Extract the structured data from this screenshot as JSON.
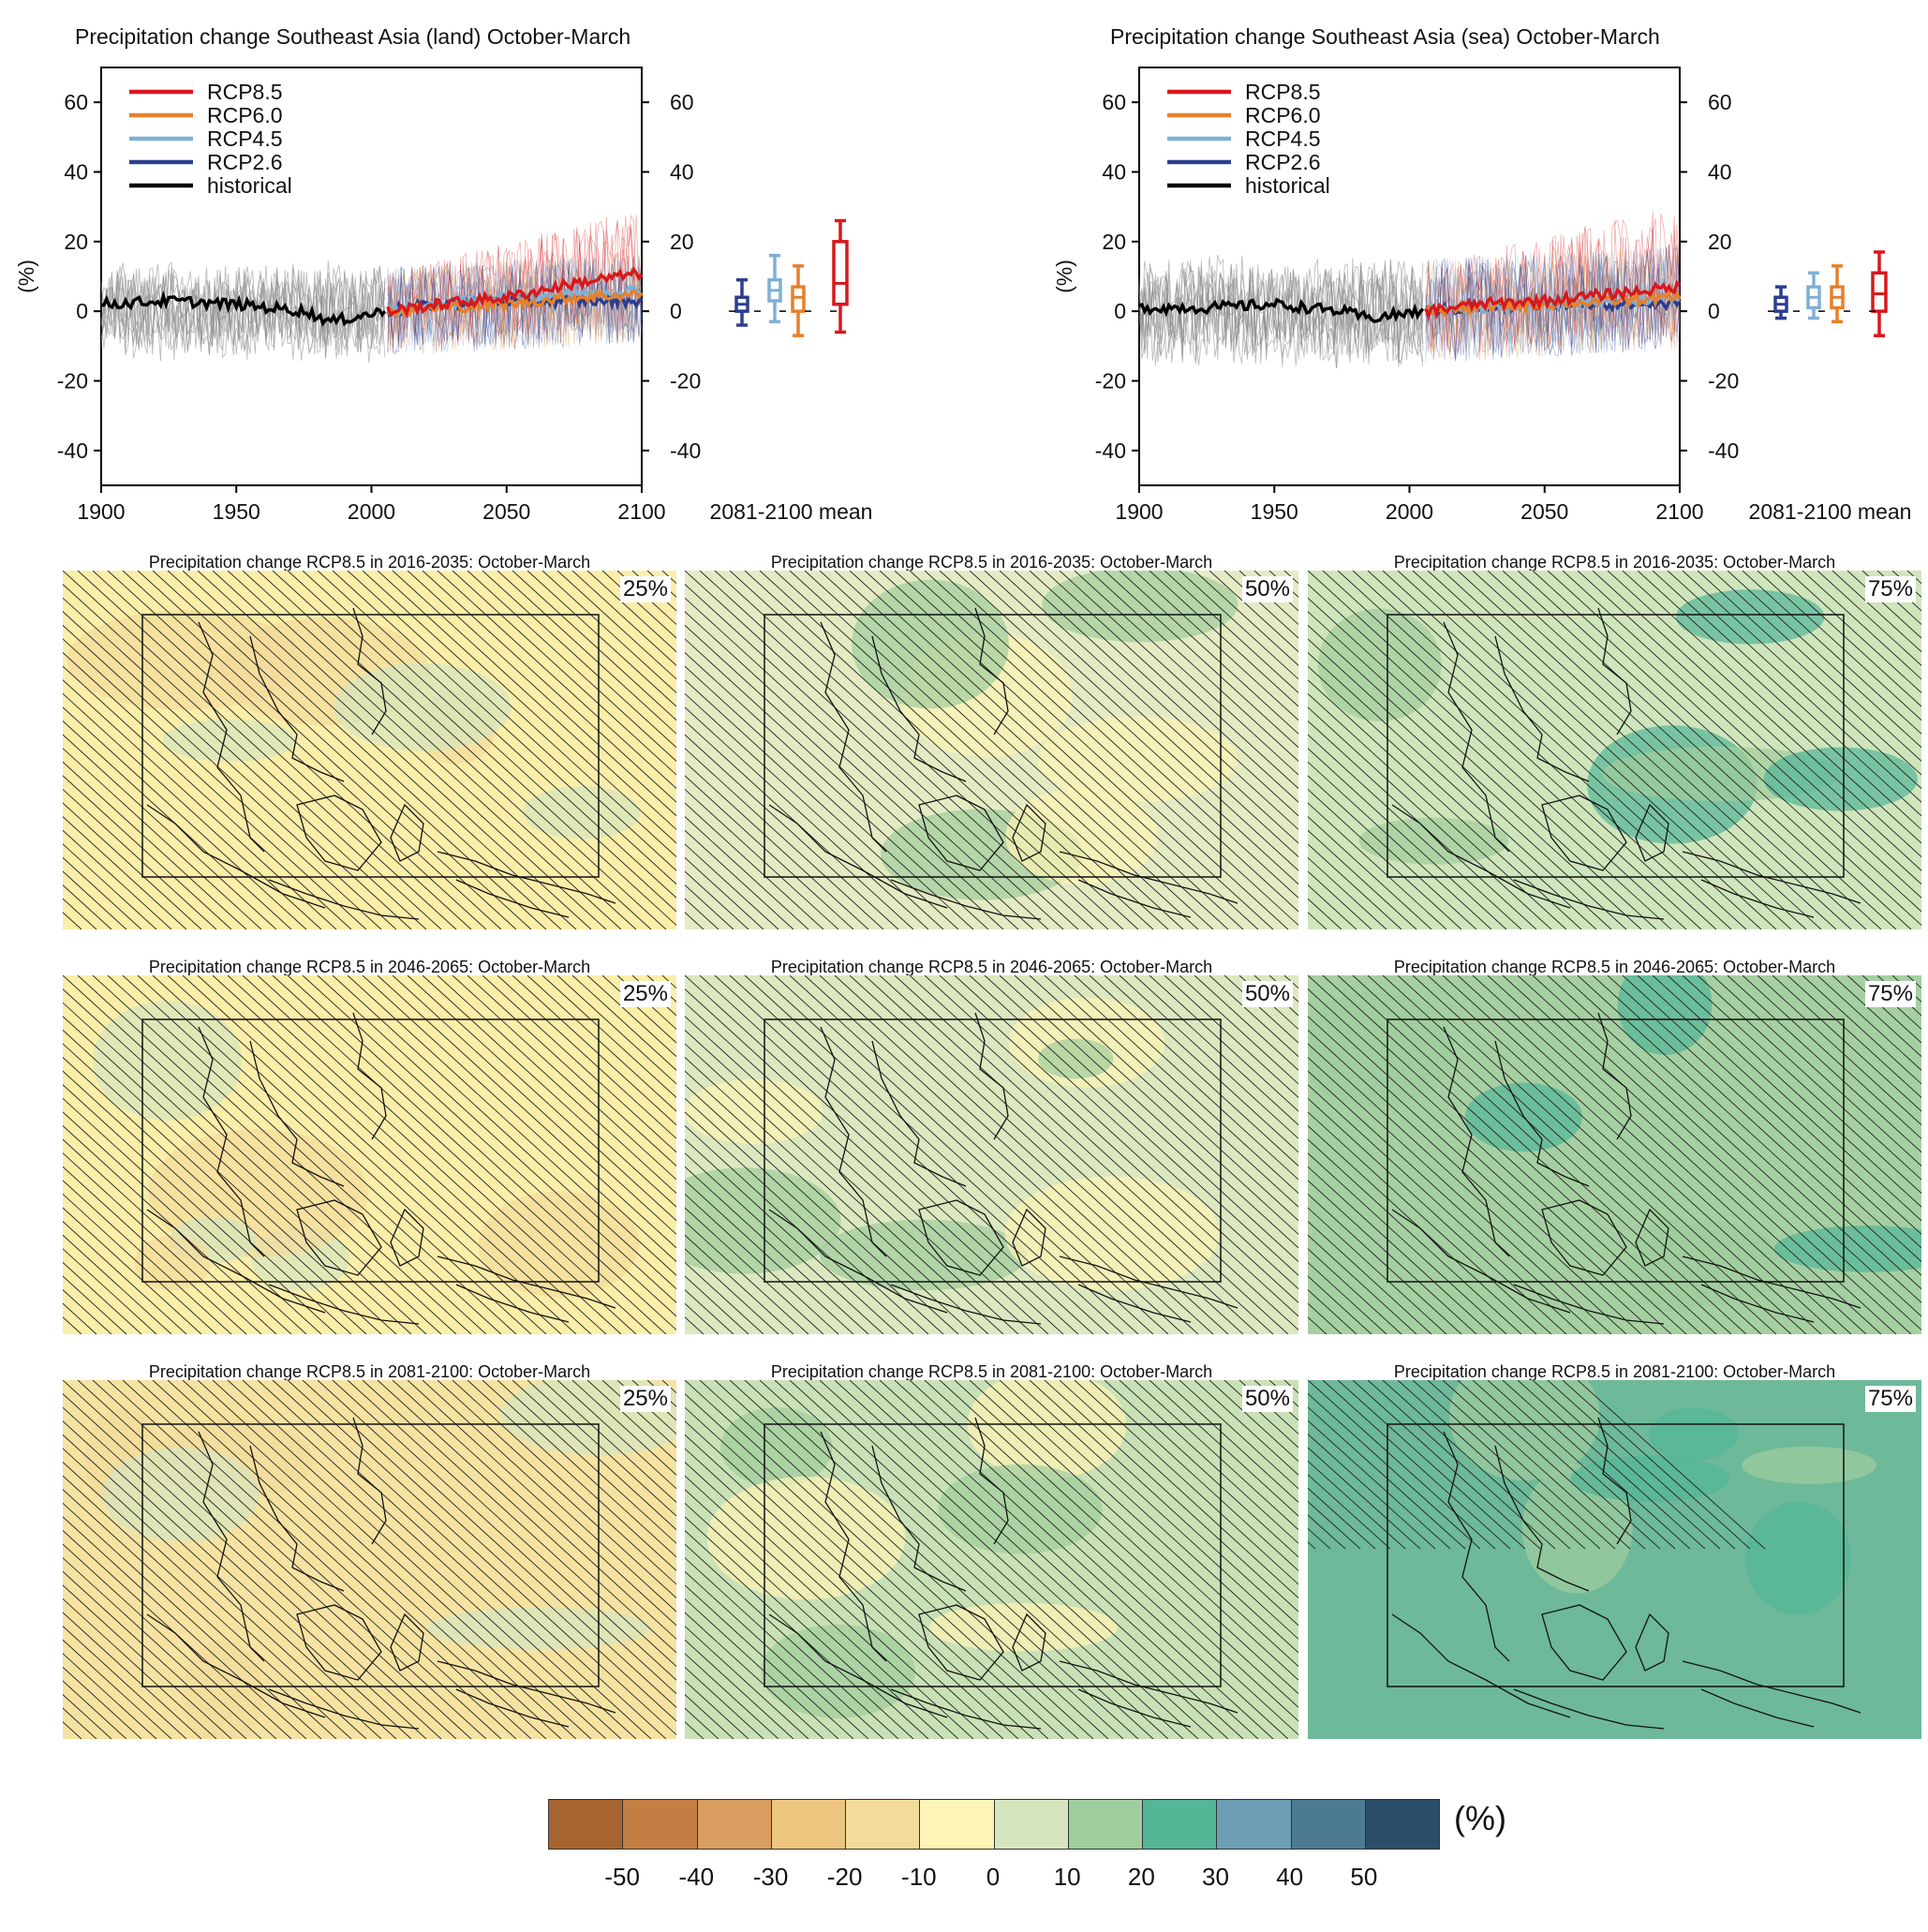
{
  "timeseries": [
    {
      "title": "Precipitation change Southeast Asia (land) October-March",
      "ylabel": "(%)",
      "boxlabel": "2081-2100 mean"
    },
    {
      "title": "Precipitation change Southeast Asia (sea) October-March",
      "ylabel": "(%)",
      "boxlabel": "2081-2100 mean"
    }
  ],
  "maps": {
    "row_titles": [
      "Precipitation change RCP8.5 in 2016-2035: October-March",
      "Precipitation change RCP8.5 in 2046-2065: October-March",
      "Precipitation change RCP8.5 in 2081-2100: October-March"
    ],
    "percentiles": [
      "25%",
      "50%",
      "75%"
    ]
  },
  "colorbar": {
    "labels": [
      "-50",
      "-40",
      "-30",
      "-20",
      "-10",
      "0",
      "10",
      "20",
      "30",
      "40",
      "50"
    ],
    "colors": [
      "#a8642f",
      "#c47e43",
      "#d99d5f",
      "#ecc57f",
      "#f3dc9b",
      "#fdf4b5",
      "#d5e6bf",
      "#9fcd9d",
      "#52b697",
      "#6c9fb4",
      "#4c7a93",
      "#2a4e67"
    ],
    "unit": "(%)"
  },
  "map_colors": {
    "r0": [
      "#fbeea9",
      "#e4ebc3",
      "#cfe5bc"
    ],
    "r1": [
      "#fbeea9",
      "#dbe8c0",
      "#a6d0a1"
    ],
    "r2": [
      "#f6e3a2",
      "#c9e1b6",
      "#6db99a"
    ]
  },
  "chart_data": [
    {
      "type": "line",
      "title": "Precipitation change Southeast Asia (land) October-March",
      "ylabel": "(%)",
      "xlim": [
        1900,
        2100
      ],
      "ylim": [
        -50,
        70
      ],
      "xticks": [
        1900,
        1950,
        2000,
        2050,
        2100
      ],
      "yticks": [
        -40,
        -20,
        0,
        20,
        40,
        60
      ],
      "legend": "top-left",
      "series": [
        {
          "name": "RCP8.5",
          "color": "#d7191c",
          "x": [
            2006,
            2025,
            2050,
            2075,
            2100
          ],
          "values": [
            0,
            2,
            4,
            8,
            11
          ]
        },
        {
          "name": "RCP6.0",
          "color": "#e6802b",
          "x": [
            2006,
            2025,
            2050,
            2075,
            2100
          ],
          "values": [
            0,
            1,
            2,
            4,
            5
          ]
        },
        {
          "name": "RCP4.5",
          "color": "#7fb0d5",
          "x": [
            2006,
            2025,
            2050,
            2075,
            2100
          ],
          "values": [
            0,
            2,
            4,
            5,
            6
          ]
        },
        {
          "name": "RCP2.6",
          "color": "#2c3e8f",
          "x": [
            2006,
            2025,
            2050,
            2075,
            2100
          ],
          "values": [
            0,
            2,
            3,
            3,
            3
          ]
        },
        {
          "name": "historical",
          "color": "#000000",
          "x": [
            1900,
            1925,
            1950,
            1975,
            1985,
            2005
          ],
          "values": [
            2,
            3,
            2,
            0,
            -3,
            0
          ]
        }
      ],
      "boxplots": {
        "label": "2081-2100 mean",
        "items": [
          {
            "scenario": "RCP2.6",
            "color": "#2c3e8f",
            "min": -4,
            "q1": 0,
            "median": 2,
            "q3": 4,
            "max": 9
          },
          {
            "scenario": "RCP4.5",
            "color": "#7fb0d5",
            "min": -3,
            "q1": 3,
            "median": 6,
            "q3": 9,
            "max": 16
          },
          {
            "scenario": "RCP6.0",
            "color": "#e6802b",
            "min": -7,
            "q1": 0,
            "median": 4,
            "q3": 7,
            "max": 13
          },
          {
            "scenario": "RCP8.5",
            "color": "#d7191c",
            "min": -6,
            "q1": 2,
            "median": 8,
            "q3": 20,
            "max": 26
          }
        ]
      }
    },
    {
      "type": "line",
      "title": "Precipitation change Southeast Asia (sea) October-March",
      "ylabel": "(%)",
      "xlim": [
        1900,
        2100
      ],
      "ylim": [
        -50,
        70
      ],
      "xticks": [
        1900,
        1950,
        2000,
        2050,
        2100
      ],
      "yticks": [
        -40,
        -20,
        0,
        20,
        40,
        60
      ],
      "legend": "top-left",
      "series": [
        {
          "name": "RCP8.5",
          "color": "#d7191c",
          "x": [
            2006,
            2025,
            2050,
            2075,
            2100
          ],
          "values": [
            0,
            2,
            3,
            5,
            7
          ]
        },
        {
          "name": "RCP6.0",
          "color": "#e6802b",
          "x": [
            2006,
            2025,
            2050,
            2075,
            2100
          ],
          "values": [
            0,
            1,
            2,
            3,
            4
          ]
        },
        {
          "name": "RCP4.5",
          "color": "#7fb0d5",
          "x": [
            2006,
            2025,
            2050,
            2075,
            2100
          ],
          "values": [
            0,
            1,
            2,
            3,
            4
          ]
        },
        {
          "name": "RCP2.6",
          "color": "#2c3e8f",
          "x": [
            2006,
            2025,
            2050,
            2075,
            2100
          ],
          "values": [
            0,
            1,
            2,
            2,
            2
          ]
        },
        {
          "name": "historical",
          "color": "#000000",
          "x": [
            1900,
            1925,
            1950,
            1975,
            1985,
            2005
          ],
          "values": [
            1,
            1,
            2,
            0,
            -2,
            0
          ]
        }
      ],
      "boxplots": {
        "label": "2081-2100 mean",
        "items": [
          {
            "scenario": "RCP2.6",
            "color": "#2c3e8f",
            "min": -2,
            "q1": 0,
            "median": 2,
            "q3": 4,
            "max": 7
          },
          {
            "scenario": "RCP4.5",
            "color": "#7fb0d5",
            "min": -2,
            "q1": 1,
            "median": 4,
            "q3": 7,
            "max": 11
          },
          {
            "scenario": "RCP6.0",
            "color": "#e6802b",
            "min": -3,
            "q1": 1,
            "median": 4,
            "q3": 7,
            "max": 13
          },
          {
            "scenario": "RCP8.5",
            "color": "#d7191c",
            "min": -7,
            "q1": 0,
            "median": 5,
            "q3": 11,
            "max": 17
          }
        ]
      }
    }
  ]
}
